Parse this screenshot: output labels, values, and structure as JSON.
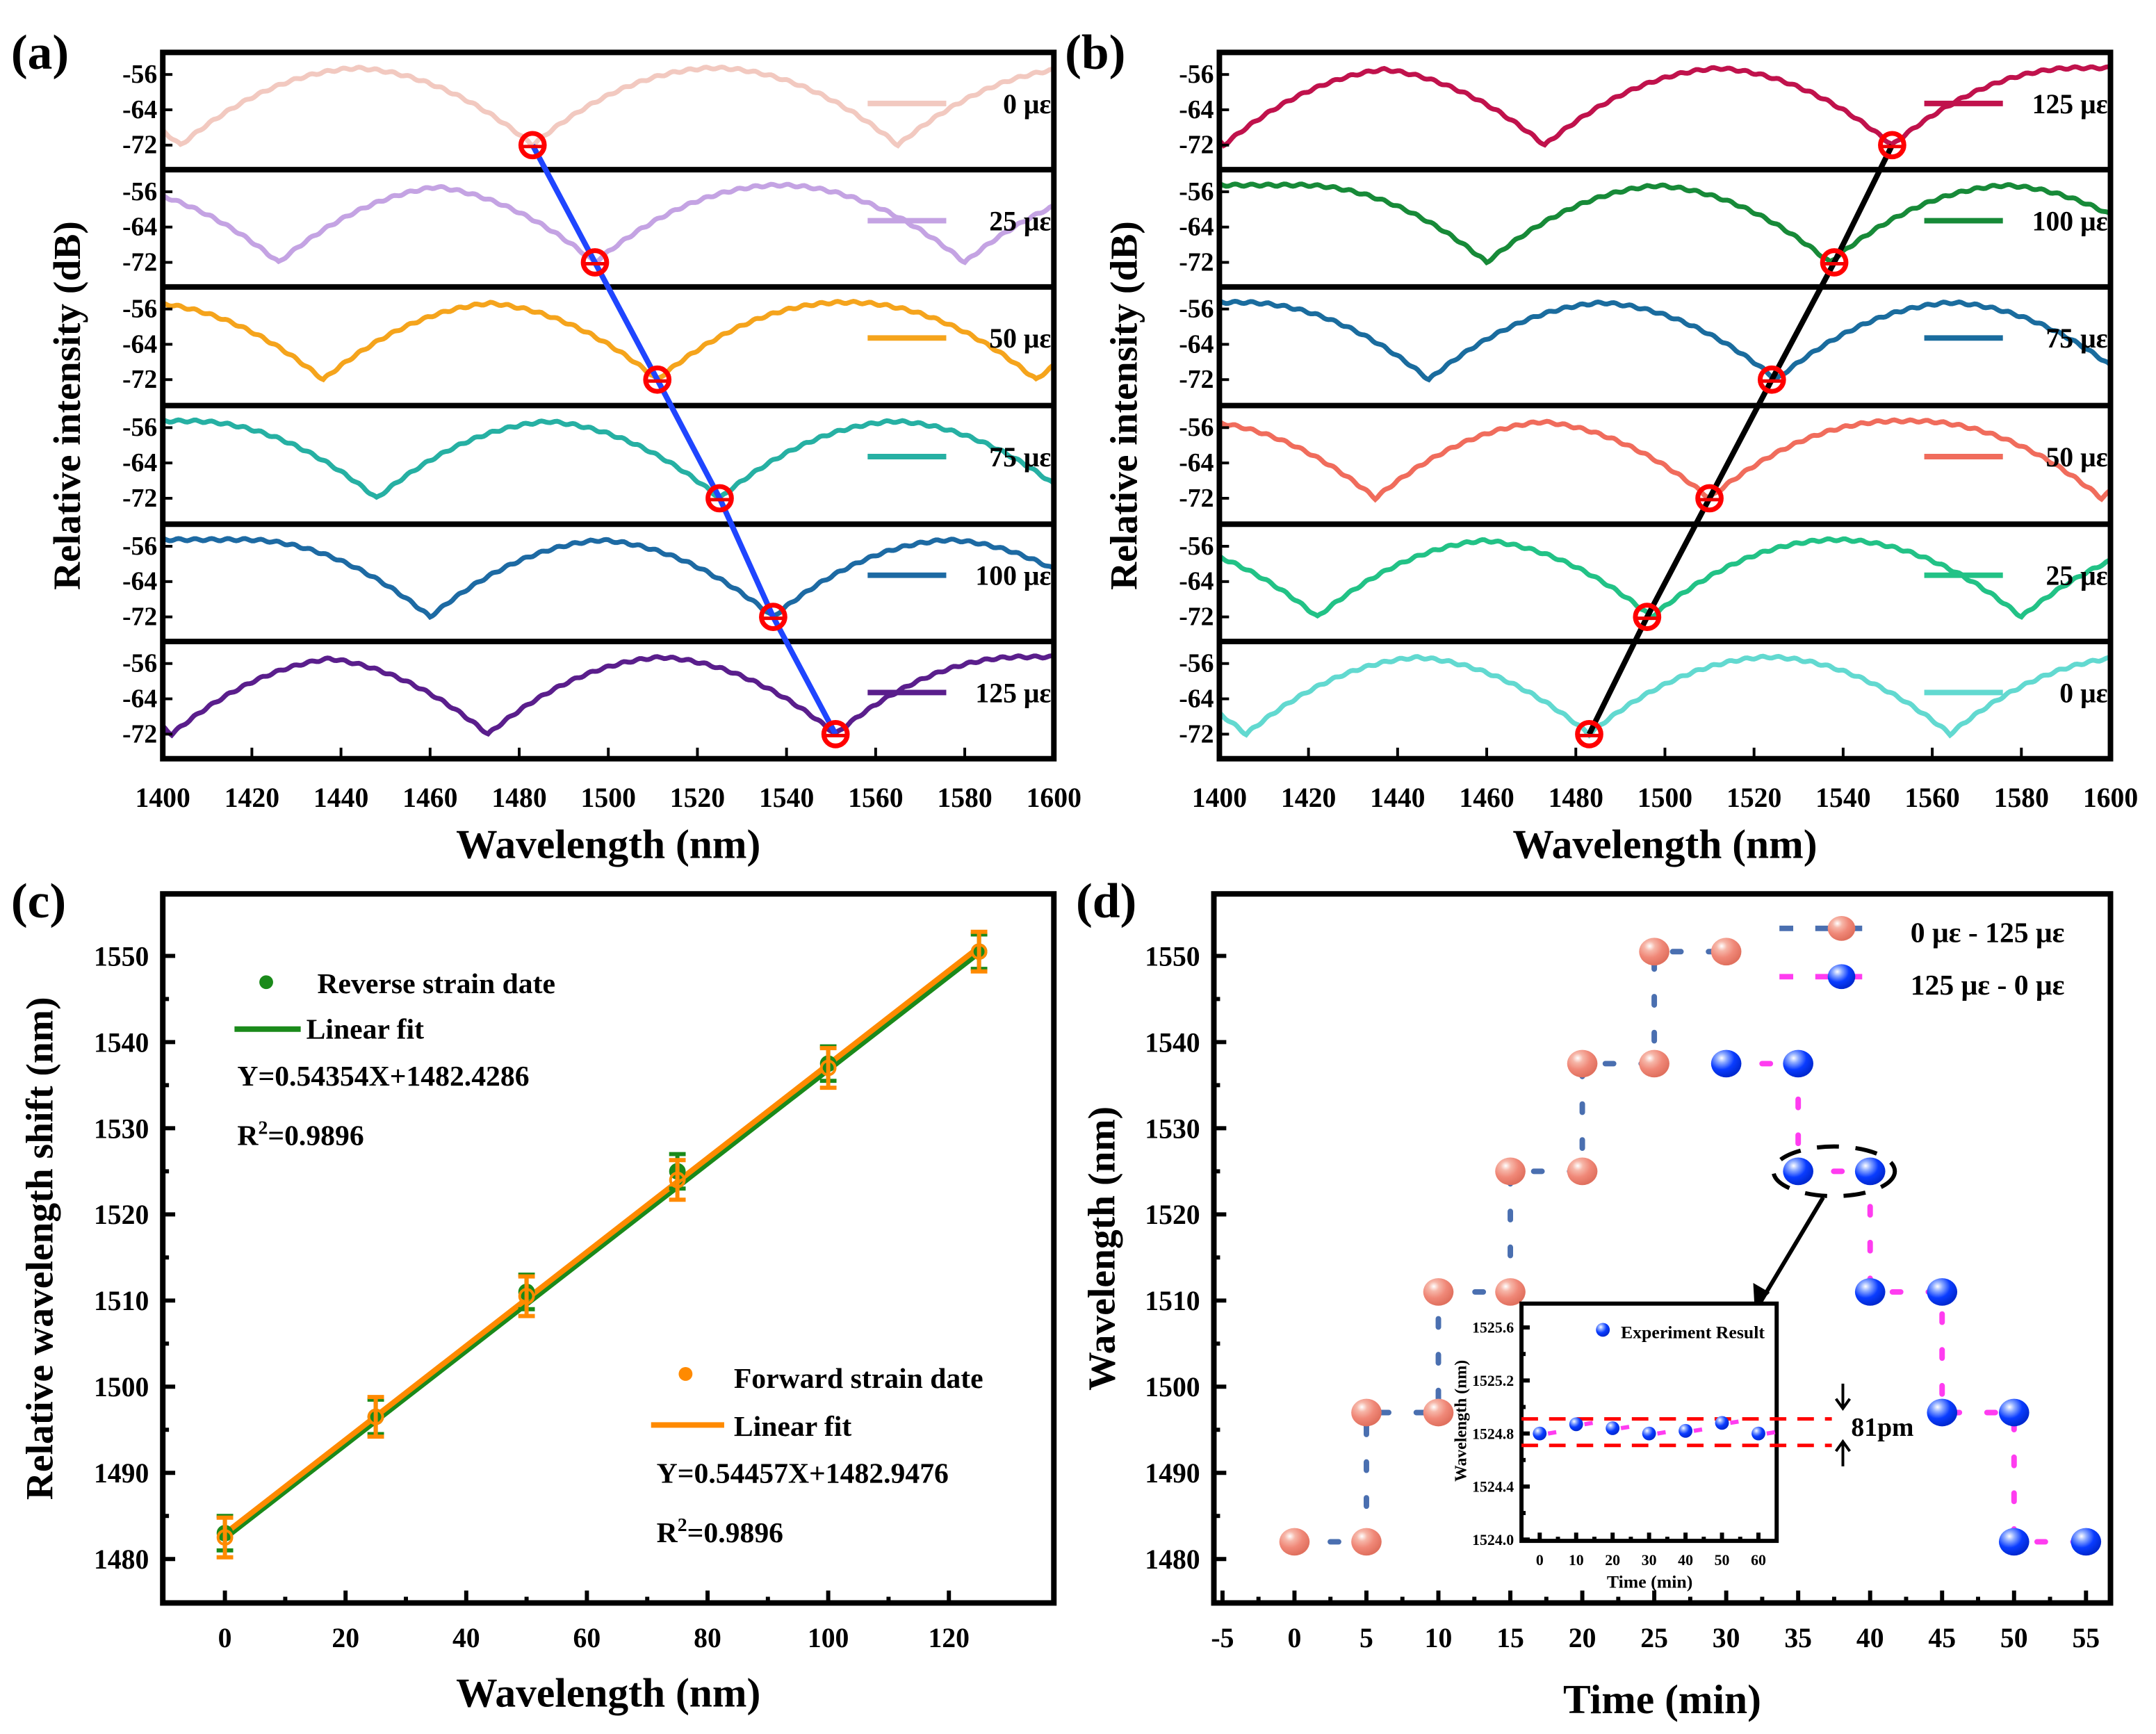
{
  "panel_labels": [
    "(a)",
    "(b)",
    "(c)",
    "(d)"
  ],
  "chart_data": [
    {
      "panel": "a",
      "type": "line",
      "xlabel": "Wavelength (nm)",
      "ylabel": "Relative intensity (dB)",
      "xlim": [
        1400,
        1600
      ],
      "xticks": [
        1400,
        1420,
        1440,
        1460,
        1480,
        1500,
        1520,
        1540,
        1560,
        1580,
        1600
      ],
      "yticks": [
        -56,
        -64,
        -72
      ],
      "series": [
        {
          "name": "0 με",
          "color": "#f2c9c0",
          "dips": [
            1404,
            1483,
            1565
          ]
        },
        {
          "name": "25 με",
          "color": "#c4a3e3",
          "dips": [
            1426,
            1497,
            1580
          ]
        },
        {
          "name": "50 με",
          "color": "#f5a41c",
          "dips": [
            1436,
            1511,
            1596
          ]
        },
        {
          "name": "75 με",
          "color": "#26b0a3",
          "dips": [
            1448,
            1525,
            1604
          ]
        },
        {
          "name": "100 με",
          "color": "#1d6aa3",
          "dips": [
            1460,
            1537,
            1616
          ]
        },
        {
          "name": "125 με",
          "color": "#5a1e8c",
          "dips": [
            1402,
            1473,
            1551
          ]
        }
      ],
      "tracked_dips": {
        "strain": [
          0,
          25,
          50,
          75,
          100,
          125
        ],
        "wavelength": [
          1483,
          1497,
          1511,
          1525,
          1537,
          1551
        ]
      },
      "fit_color": "#1f45ff"
    },
    {
      "panel": "b",
      "type": "line",
      "xlabel": "Wavelength (nm)",
      "ylabel": "Relative intensity (dB)",
      "xlim": [
        1400,
        1600
      ],
      "xticks": [
        1400,
        1420,
        1440,
        1460,
        1480,
        1500,
        1520,
        1540,
        1560,
        1580,
        1600
      ],
      "yticks": [
        -56,
        -64,
        -72
      ],
      "series": [
        {
          "name": "125 με",
          "color": "#c0124c",
          "dips": [
            1401,
            1473,
            1551
          ]
        },
        {
          "name": "100 με",
          "color": "#178a38",
          "dips": [
            1460,
            1537,
            1616
          ]
        },
        {
          "name": "75 με",
          "color": "#1a6c9e",
          "dips": [
            1447,
            1525,
            1604
          ]
        },
        {
          "name": "50 με",
          "color": "#f06c5c",
          "dips": [
            1435,
            1510,
            1598
          ]
        },
        {
          "name": "25 με",
          "color": "#22c286",
          "dips": [
            1422,
            1497,
            1580
          ]
        },
        {
          "name": "0 με",
          "color": "#62d9d0",
          "dips": [
            1406,
            1483,
            1564
          ]
        }
      ],
      "tracked_dips": {
        "strain": [
          125,
          100,
          75,
          50,
          25,
          0
        ],
        "wavelength": [
          1551,
          1538,
          1524,
          1510,
          1496,
          1483
        ]
      },
      "fit_color": "#000000"
    },
    {
      "panel": "c",
      "type": "scatter",
      "xlabel": "Wavelength (nm)",
      "ylabel": "Relative wavelength shift (nm)",
      "xlim": [
        -10.3,
        137.4
      ],
      "ylim": [
        1474.9,
        1557.2
      ],
      "xticks": [
        0,
        20,
        40,
        60,
        80,
        100,
        120
      ],
      "yticks": [
        1480,
        1490,
        1500,
        1510,
        1520,
        1530,
        1540,
        1550
      ],
      "x": [
        0,
        25,
        50,
        75,
        100,
        125
      ],
      "series": [
        {
          "name": "Reverse strain date",
          "color": "#1a8a1a",
          "values": [
            1483,
            1496.5,
            1511,
            1525,
            1537.5,
            1550.5
          ],
          "error": 2,
          "fit_label": "Linear fit",
          "equation": "Y=0.54354X+1482.4286",
          "r2_prefix": "R",
          "r2_sup": "2",
          "r2_value": "=0.9896",
          "slope": 0.54354,
          "intercept": 1482.4286
        },
        {
          "name": "Forward strain date",
          "color": "#ff8a00",
          "values": [
            1482.5,
            1496.5,
            1510.5,
            1524,
            1537,
            1550.5
          ],
          "error": 2.3,
          "fit_label": "Linear fit",
          "equation": "Y=0.54457X+1482.9476",
          "r2_prefix": "R",
          "r2_sup": "2",
          "r2_value": "=0.9896",
          "slope": 0.54457,
          "intercept": 1482.9476
        }
      ]
    },
    {
      "panel": "d",
      "type": "scatter",
      "xlabel": "Time (min)",
      "ylabel": "Wavelength (nm)",
      "xlim": [
        -5.6,
        56.7
      ],
      "ylim": [
        1474.9,
        1557.2
      ],
      "xticks": [
        -5,
        0,
        5,
        10,
        15,
        20,
        25,
        30,
        35,
        40,
        45,
        50,
        55
      ],
      "yticks": [
        1480,
        1490,
        1500,
        1510,
        1520,
        1530,
        1540,
        1550
      ],
      "series": [
        {
          "name": "0 με - 125 με",
          "color": "#f08878",
          "line_color": "#4a6fb0",
          "x": [
            0,
            5,
            5,
            10,
            10,
            15,
            15,
            20,
            20,
            25,
            25,
            30
          ],
          "y": [
            1482,
            1482,
            1497,
            1497,
            1511,
            1511,
            1525,
            1525,
            1537.5,
            1537.5,
            1550.5,
            1550.5
          ]
        },
        {
          "name": "125 με - 0 με",
          "color": "#0a3cff",
          "line_color": "#ff3cf0",
          "x": [
            30,
            35,
            35,
            40,
            40,
            45,
            45,
            50,
            50,
            55
          ],
          "y": [
            1537.5,
            1537.5,
            1525,
            1525,
            1511,
            1511,
            1497,
            1497,
            1482,
            1482
          ]
        }
      ]
    },
    {
      "panel": "d-inset",
      "type": "scatter",
      "xlabel": "Time (min)",
      "ylabel": "Wavelength (nm)",
      "xlim": [
        -5,
        65
      ],
      "ylim": [
        1523.99,
        1525.78
      ],
      "xticks": [
        0,
        10,
        20,
        30,
        40,
        50,
        60
      ],
      "yticks": [
        "1524.0",
        "1524.4",
        "1524.8",
        "1525.2",
        "1525.6"
      ],
      "series": [
        {
          "name": "Experiment Result",
          "color": "#0a3cff",
          "x": [
            0,
            10,
            20,
            30,
            40,
            50,
            60
          ],
          "y": [
            1524.8,
            1524.87,
            1524.84,
            1524.8,
            1524.82,
            1524.88,
            1524.8
          ]
        }
      ],
      "band": [
        1524.71,
        1524.91
      ],
      "annotation": "81pm"
    }
  ]
}
